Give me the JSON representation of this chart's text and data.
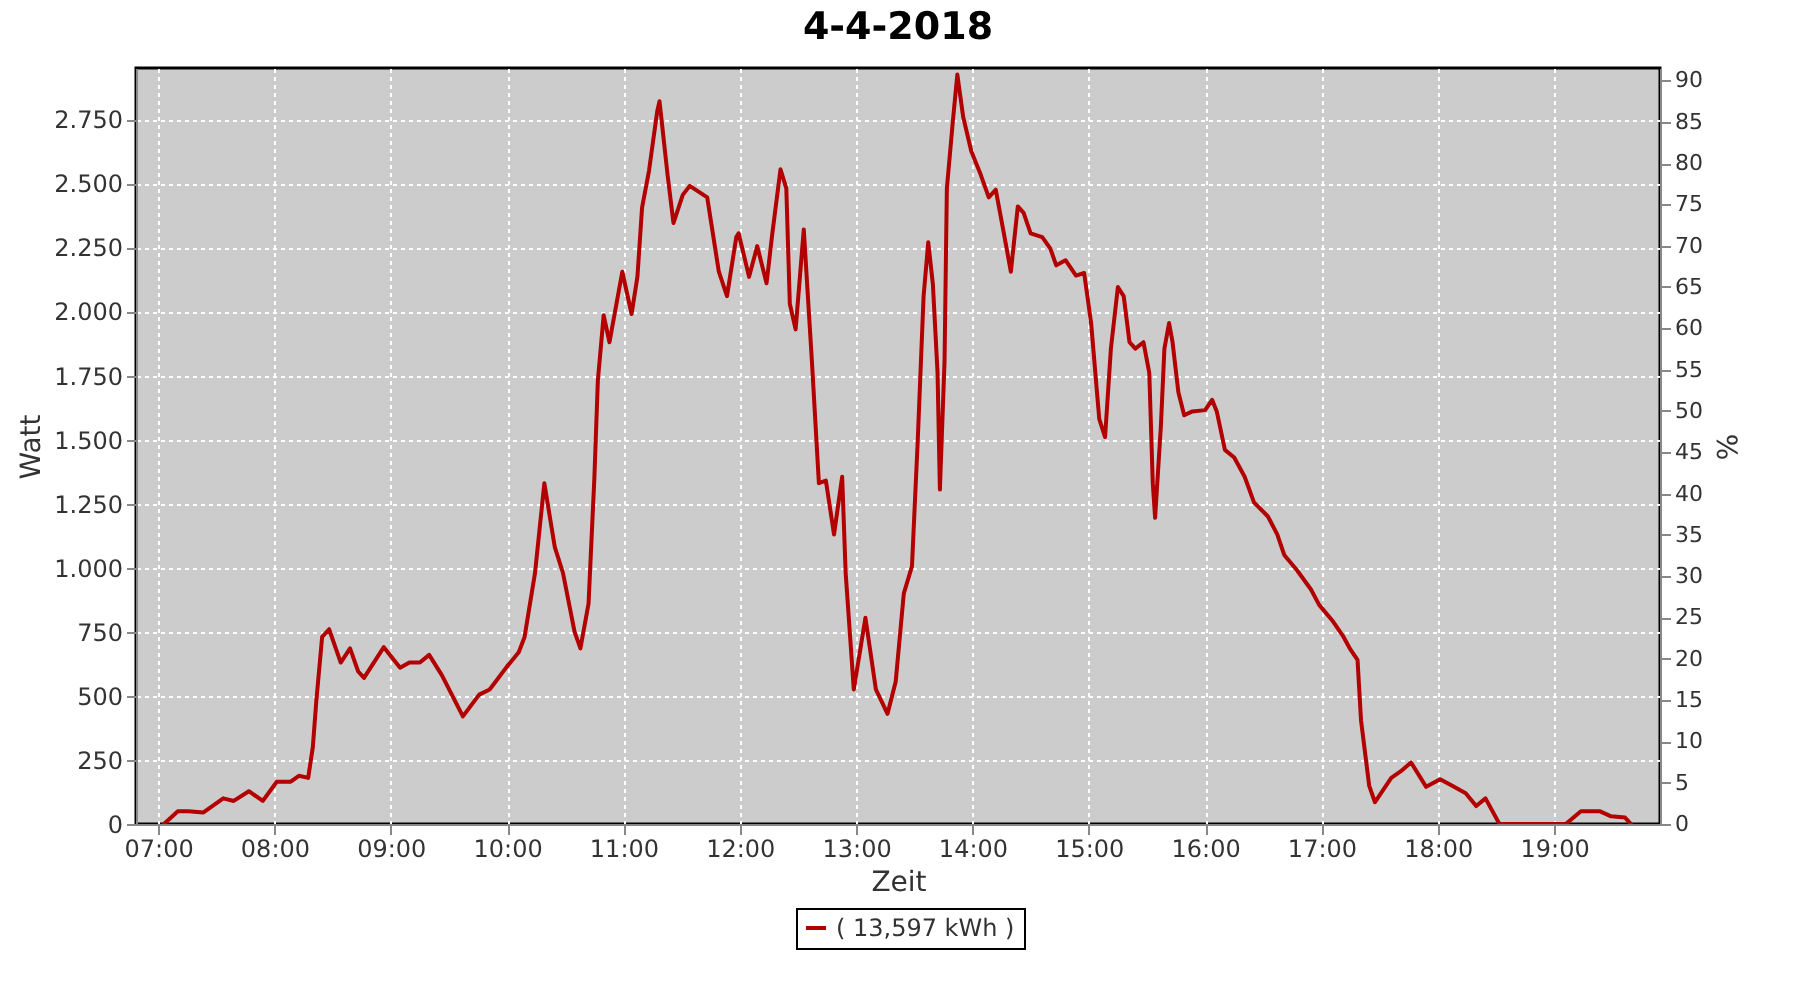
{
  "chart_data": {
    "type": "line",
    "title": "4-4-2018",
    "xlabel": "Zeit",
    "ylabel": "Watt",
    "y2label": "%",
    "xlim": [
      6.81,
      19.91
    ],
    "xticks": [
      {
        "value": 7,
        "label": "07:00"
      },
      {
        "value": 8,
        "label": "08:00"
      },
      {
        "value": 9,
        "label": "09:00"
      },
      {
        "value": 10,
        "label": "10:00"
      },
      {
        "value": 11,
        "label": "11:00"
      },
      {
        "value": 12,
        "label": "12:00"
      },
      {
        "value": 13,
        "label": "13:00"
      },
      {
        "value": 14,
        "label": "14:00"
      },
      {
        "value": 15,
        "label": "15:00"
      },
      {
        "value": 16,
        "label": "16:00"
      },
      {
        "value": 17,
        "label": "17:00"
      },
      {
        "value": 18,
        "label": "18:00"
      },
      {
        "value": 19,
        "label": "19:00"
      }
    ],
    "ylim": [
      0,
      2950
    ],
    "yticks": [
      0,
      250,
      500,
      750,
      {
        "value": 1000,
        "label": "1.000"
      },
      {
        "value": 1250,
        "label": "1.250"
      },
      {
        "value": 1500,
        "label": "1.500"
      },
      {
        "value": 1750,
        "label": "1.750"
      },
      {
        "value": 2000,
        "label": "2.000"
      },
      {
        "value": 2250,
        "label": "2.250"
      },
      {
        "value": 2500,
        "label": "2.500"
      },
      {
        "value": 2750,
        "label": "2.750"
      }
    ],
    "y2lim": [
      0,
      91.5
    ],
    "y2ticks": [
      0,
      5,
      10,
      15,
      20,
      25,
      30,
      35,
      40,
      45,
      50,
      55,
      60,
      65,
      70,
      75,
      80,
      85,
      90
    ],
    "grid": true,
    "legend": "bottom",
    "x": [
      7.05,
      7.17,
      7.26,
      7.39,
      7.56,
      7.65,
      7.78,
      7.9,
      8.02,
      8.14,
      8.21,
      8.29,
      8.33,
      8.36,
      8.41,
      8.47,
      8.57,
      8.65,
      8.72,
      8.77,
      8.94,
      9.08,
      9.16,
      9.25,
      9.33,
      9.44,
      9.62,
      9.76,
      9.85,
      10.0,
      10.1,
      10.15,
      10.24,
      10.32,
      10.41,
      10.48,
      10.58,
      10.63,
      10.7,
      10.75,
      10.78,
      10.83,
      10.88,
      10.99,
      11.07,
      11.12,
      11.16,
      11.22,
      11.29,
      11.31,
      11.38,
      11.43,
      11.51,
      11.57,
      11.72,
      11.82,
      11.89,
      11.97,
      11.99,
      12.08,
      12.15,
      12.23,
      12.28,
      12.35,
      12.4,
      12.43,
      12.48,
      12.55,
      12.62,
      12.68,
      12.74,
      12.81,
      12.88,
      12.91,
      12.98,
      13.08,
      13.17,
      13.27,
      13.34,
      13.41,
      13.48,
      13.53,
      13.58,
      13.62,
      13.66,
      13.7,
      13.72,
      13.76,
      13.78,
      13.83,
      13.87,
      13.92,
      13.99,
      14.07,
      14.14,
      14.2,
      14.27,
      14.33,
      14.39,
      14.44,
      14.5,
      14.6,
      14.67,
      14.72,
      14.8,
      14.89,
      14.96,
      15.02,
      15.09,
      15.14,
      15.19,
      15.25,
      15.3,
      15.35,
      15.4,
      15.47,
      15.52,
      15.55,
      15.57,
      15.62,
      15.65,
      15.69,
      15.72,
      15.77,
      15.82,
      15.89,
      16.0,
      16.06,
      16.1,
      16.17,
      16.25,
      16.34,
      16.42,
      16.54,
      16.62,
      16.68,
      16.79,
      16.91,
      16.98,
      17.1,
      17.19,
      17.25,
      17.31,
      17.34,
      17.41,
      17.46,
      17.6,
      17.68,
      17.77,
      17.9,
      18.02,
      18.12,
      18.24,
      18.33,
      18.41,
      18.53,
      19.1,
      19.23,
      19.39,
      19.49,
      19.61,
      19.66
    ],
    "series": [
      {
        "name": "( 13,597 kWh )",
        "color": "#b30000",
        "values": [
          0,
          50,
          50,
          45,
          100,
          90,
          128,
          90,
          165,
          165,
          188,
          180,
          300,
          480,
          730,
          760,
          630,
          685,
          595,
          570,
          690,
          610,
          630,
          630,
          660,
          580,
          420,
          505,
          525,
          615,
          670,
          730,
          980,
          1330,
          1080,
          980,
          750,
          685,
          860,
          1350,
          1730,
          1985,
          1880,
          2155,
          1990,
          2135,
          2405,
          2550,
          2780,
          2820,
          2530,
          2345,
          2455,
          2490,
          2445,
          2155,
          2060,
          2290,
          2305,
          2135,
          2255,
          2110,
          2305,
          2555,
          2480,
          2030,
          1930,
          2320,
          1805,
          1330,
          1340,
          1130,
          1355,
          980,
          525,
          805,
          525,
          430,
          555,
          900,
          1005,
          1500,
          2060,
          2270,
          2105,
          1760,
          1305,
          1805,
          2480,
          2735,
          2925,
          2760,
          2625,
          2535,
          2445,
          2475,
          2305,
          2155,
          2410,
          2385,
          2305,
          2290,
          2245,
          2180,
          2200,
          2140,
          2150,
          1955,
          1580,
          1510,
          1855,
          2095,
          2060,
          1880,
          1855,
          1880,
          1760,
          1330,
          1195,
          1555,
          1855,
          1955,
          1880,
          1685,
          1595,
          1610,
          1615,
          1655,
          1610,
          1460,
          1430,
          1355,
          1255,
          1200,
          1130,
          1050,
          990,
          915,
          855,
          790,
          730,
          680,
          640,
          405,
          150,
          85,
          180,
          205,
          240,
          145,
          175,
          150,
          120,
          70,
          100,
          0,
          0,
          50,
          50,
          30,
          25,
          0
        ]
      }
    ]
  }
}
